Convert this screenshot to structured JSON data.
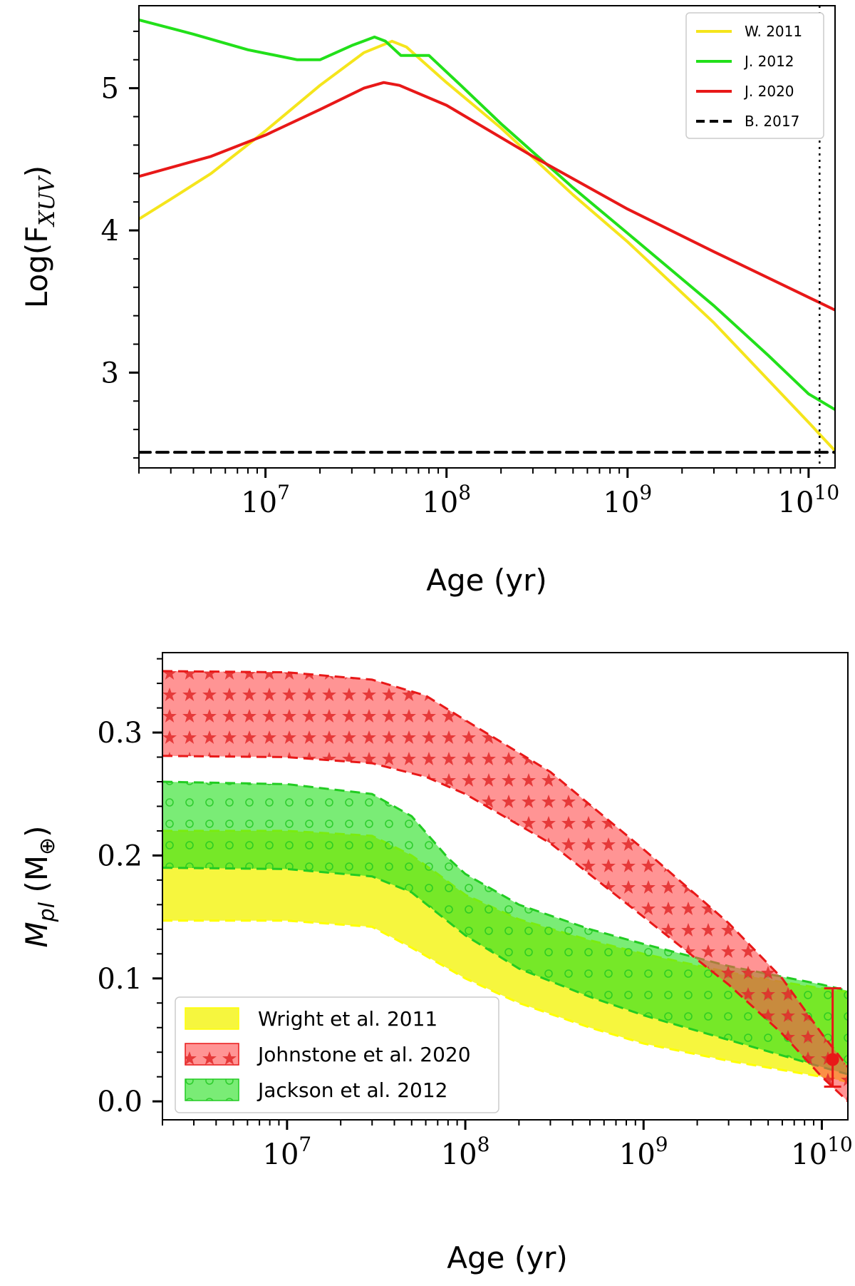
{
  "chart_data": [
    {
      "type": "line",
      "xlabel": "Age (yr)",
      "ylabel": "Log(F_XUV)",
      "ylabel_main": "Log(F",
      "ylabel_sub": "XUV",
      "ylabel_close": ")",
      "xscale": "log",
      "xlim": [
        2000000,
        14000000000
      ],
      "ylim": [
        2.33,
        5.58
      ],
      "xticks": [
        {
          "value": 10000000,
          "base": "10",
          "exp": "7"
        },
        {
          "value": 100000000,
          "base": "10",
          "exp": "8"
        },
        {
          "value": 1000000000,
          "base": "10",
          "exp": "9"
        },
        {
          "value": 10000000000,
          "base": "10",
          "exp": "10"
        }
      ],
      "yticks": [
        {
          "value": 3,
          "label": "3"
        },
        {
          "value": 4,
          "label": "4"
        },
        {
          "value": 5,
          "label": "5"
        }
      ],
      "legend_position": "top-right",
      "vline": 11500000000,
      "series": [
        {
          "name": "W. 2011",
          "color": "#f5e51c",
          "style": "solid",
          "points": [
            [
              2000000,
              4.08
            ],
            [
              3000000,
              4.22
            ],
            [
              5000000,
              4.4
            ],
            [
              10000000,
              4.7
            ],
            [
              20000000,
              5.02
            ],
            [
              35000000,
              5.25
            ],
            [
              50000000,
              5.33
            ],
            [
              60000000,
              5.29
            ],
            [
              100000000,
              5.04
            ],
            [
              200000000,
              4.72
            ],
            [
              500000000,
              4.25
            ],
            [
              1000000000,
              3.92
            ],
            [
              3000000000,
              3.35
            ],
            [
              10000000000,
              2.65
            ],
            [
              14000000000,
              2.45
            ]
          ]
        },
        {
          "name": "J. 2012",
          "color": "#22e01a",
          "style": "solid",
          "points": [
            [
              2000000,
              5.48
            ],
            [
              4000000,
              5.38
            ],
            [
              8000000,
              5.27
            ],
            [
              15000000,
              5.2
            ],
            [
              20000000,
              5.2
            ],
            [
              30000000,
              5.3
            ],
            [
              40000000,
              5.36
            ],
            [
              46000000,
              5.33
            ],
            [
              56000000,
              5.23
            ],
            [
              80000000,
              5.23
            ],
            [
              120000000,
              5.02
            ],
            [
              200000000,
              4.75
            ],
            [
              500000000,
              4.3
            ],
            [
              1000000000,
              3.98
            ],
            [
              3000000000,
              3.47
            ],
            [
              6000000000,
              3.12
            ],
            [
              10000000000,
              2.85
            ],
            [
              14000000000,
              2.74
            ]
          ]
        },
        {
          "name": "J. 2020",
          "color": "#e81818",
          "style": "solid",
          "points": [
            [
              2000000,
              4.38
            ],
            [
              5000000,
              4.52
            ],
            [
              10000000,
              4.67
            ],
            [
              20000000,
              4.85
            ],
            [
              35000000,
              5.0
            ],
            [
              45000000,
              5.04
            ],
            [
              55000000,
              5.02
            ],
            [
              100000000,
              4.88
            ],
            [
              300000000,
              4.52
            ],
            [
              1000000000,
              4.15
            ],
            [
              3000000000,
              3.85
            ],
            [
              14000000000,
              3.44
            ]
          ]
        },
        {
          "name": "B. 2017",
          "color": "#000000",
          "style": "dashed",
          "points": [
            [
              2000000,
              2.44
            ],
            [
              14000000000,
              2.44
            ]
          ]
        }
      ]
    },
    {
      "type": "area",
      "xlabel": "Age (yr)",
      "ylabel": "M_pl (M_⊕)",
      "ylabel_main": "M",
      "ylabel_sub": "pl",
      "ylabel_unit": " (M",
      "ylabel_unit_sub": "⊕",
      "ylabel_close": ")",
      "xscale": "log",
      "xlim": [
        2000000,
        14000000000
      ],
      "ylim": [
        -0.015,
        0.365
      ],
      "xticks": [
        {
          "value": 10000000,
          "base": "10",
          "exp": "7"
        },
        {
          "value": 100000000,
          "base": "10",
          "exp": "8"
        },
        {
          "value": 1000000000,
          "base": "10",
          "exp": "9"
        },
        {
          "value": 10000000000,
          "base": "10",
          "exp": "10"
        }
      ],
      "yticks": [
        {
          "value": 0.0,
          "label": "0.0"
        },
        {
          "value": 0.1,
          "label": "0.1"
        },
        {
          "value": 0.2,
          "label": "0.2"
        },
        {
          "value": 0.3,
          "label": "0.3"
        }
      ],
      "legend_position": "lower-left",
      "series": [
        {
          "name": "Wright et al. 2011",
          "color": "#f5f51c",
          "line_color": "#ffff00",
          "hatch": "none",
          "upper": [
            [
              2000000,
              0.22
            ],
            [
              10000000,
              0.22
            ],
            [
              30000000,
              0.216
            ],
            [
              50000000,
              0.2
            ],
            [
              70000000,
              0.185
            ],
            [
              100000000,
              0.168
            ],
            [
              200000000,
              0.148
            ],
            [
              500000000,
              0.131
            ],
            [
              1000000000,
              0.12
            ],
            [
              3000000000,
              0.105
            ],
            [
              6000000000,
              0.097
            ],
            [
              10000000000,
              0.092
            ],
            [
              14000000000,
              0.089
            ]
          ],
          "lower": [
            [
              2000000,
              0.147
            ],
            [
              10000000,
              0.147
            ],
            [
              30000000,
              0.142
            ],
            [
              50000000,
              0.125
            ],
            [
              100000000,
              0.1
            ],
            [
              200000000,
              0.08
            ],
            [
              500000000,
              0.06
            ],
            [
              1000000000,
              0.047
            ],
            [
              3000000000,
              0.033
            ],
            [
              10000000000,
              0.02
            ],
            [
              14000000000,
              0.016
            ]
          ]
        },
        {
          "name": "Johnstone et al. 2020",
          "color": "#ff4d4d",
          "line_color": "#e81818",
          "hatch": "stars",
          "upper": [
            [
              2000000,
              0.35
            ],
            [
              10000000,
              0.349
            ],
            [
              30000000,
              0.343
            ],
            [
              60000000,
              0.33
            ],
            [
              100000000,
              0.31
            ],
            [
              300000000,
              0.268
            ],
            [
              1000000000,
              0.205
            ],
            [
              3000000000,
              0.145
            ],
            [
              6000000000,
              0.1
            ],
            [
              10000000000,
              0.055
            ],
            [
              14000000000,
              0.028
            ]
          ],
          "lower": [
            [
              2000000,
              0.281
            ],
            [
              10000000,
              0.28
            ],
            [
              30000000,
              0.275
            ],
            [
              60000000,
              0.264
            ],
            [
              100000000,
              0.25
            ],
            [
              300000000,
              0.21
            ],
            [
              1000000000,
              0.15
            ],
            [
              3000000000,
              0.095
            ],
            [
              6000000000,
              0.055
            ],
            [
              10000000000,
              0.02
            ],
            [
              14000000000,
              0.0
            ]
          ]
        },
        {
          "name": "Jackson et al. 2012",
          "color": "#22e01a",
          "line_color": "#22cc22",
          "hatch": "circles",
          "upper": [
            [
              2000000,
              0.26
            ],
            [
              10000000,
              0.258
            ],
            [
              30000000,
              0.25
            ],
            [
              50000000,
              0.232
            ],
            [
              80000000,
              0.198
            ],
            [
              100000000,
              0.185
            ],
            [
              200000000,
              0.16
            ],
            [
              500000000,
              0.14
            ],
            [
              1000000000,
              0.128
            ],
            [
              3000000000,
              0.11
            ],
            [
              10000000000,
              0.095
            ],
            [
              14000000000,
              0.09
            ]
          ],
          "lower": [
            [
              2000000,
              0.19
            ],
            [
              10000000,
              0.189
            ],
            [
              30000000,
              0.183
            ],
            [
              50000000,
              0.17
            ],
            [
              100000000,
              0.135
            ],
            [
              200000000,
              0.108
            ],
            [
              500000000,
              0.085
            ],
            [
              1000000000,
              0.07
            ],
            [
              3000000000,
              0.05
            ],
            [
              10000000000,
              0.028
            ],
            [
              14000000000,
              0.022
            ]
          ]
        }
      ],
      "marker": {
        "x": 11500000000,
        "y": 0.034,
        "ymin": 0.012,
        "ymax": 0.092,
        "color": "#e81818"
      }
    }
  ]
}
